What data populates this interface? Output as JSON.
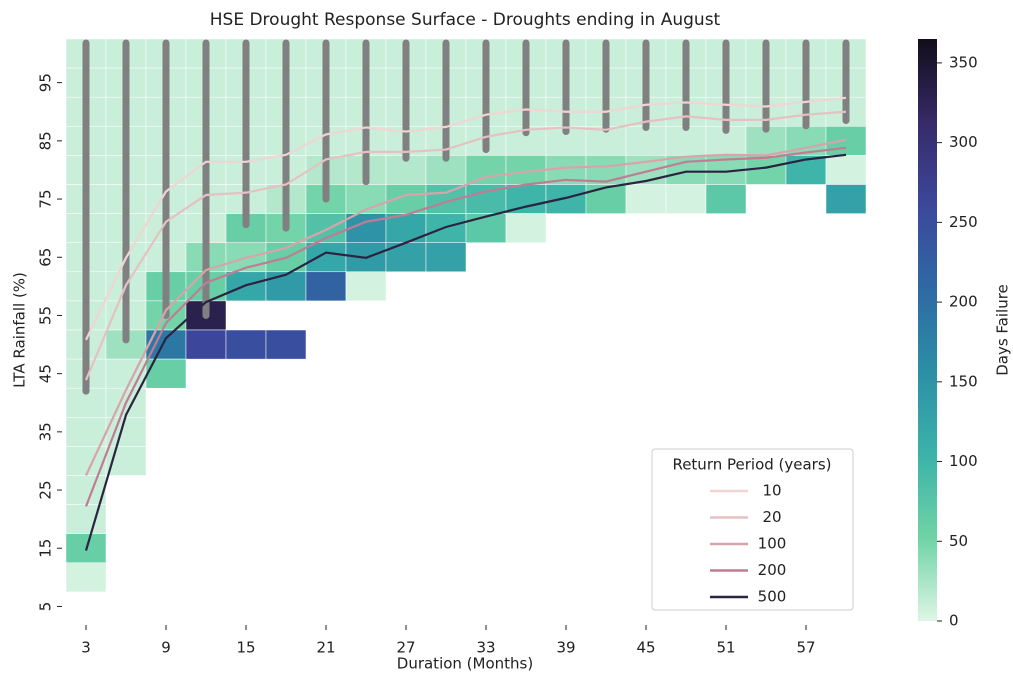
{
  "chart_data": {
    "type": "heatmap",
    "title": "HSE Drought Response Surface - Droughts ending in August",
    "x_label": "Duration (Months)",
    "y_label": "LTA Rainfall (%)",
    "colorbar_label": "Days Failure",
    "legend_title": "Return Period (years)",
    "columns": [
      3,
      6,
      9,
      12,
      15,
      18,
      21,
      24,
      27,
      30,
      33,
      36,
      39,
      42,
      45,
      48,
      51,
      54,
      57,
      60
    ],
    "rows": [
      100,
      95,
      90,
      85,
      80,
      75,
      70,
      65,
      60,
      55,
      50,
      45,
      40,
      35,
      30,
      25,
      20,
      15,
      10,
      5
    ],
    "z": [
      [
        10,
        10,
        10,
        10,
        10,
        10,
        10,
        10,
        10,
        10,
        10,
        10,
        10,
        10,
        10,
        10,
        10,
        10,
        10,
        10
      ],
      [
        10,
        10,
        10,
        10,
        10,
        10,
        10,
        10,
        10,
        10,
        10,
        10,
        10,
        10,
        10,
        10,
        10,
        10,
        10,
        10
      ],
      [
        10,
        10,
        10,
        10,
        10,
        10,
        10,
        10,
        10,
        10,
        10,
        10,
        10,
        10,
        10,
        10,
        10,
        10,
        10,
        10
      ],
      [
        10,
        10,
        10,
        10,
        10,
        10,
        10,
        10,
        10,
        10,
        10,
        10,
        10,
        10,
        10,
        10,
        10,
        30,
        40,
        60
      ],
      [
        10,
        10,
        10,
        10,
        10,
        10,
        20,
        20,
        20,
        30,
        50,
        50,
        40,
        40,
        30,
        40,
        40,
        50,
        100,
        5
      ],
      [
        10,
        10,
        10,
        10,
        10,
        20,
        50,
        40,
        60,
        80,
        90,
        100,
        100,
        60,
        5,
        5,
        70,
        null,
        null,
        130
      ],
      [
        10,
        10,
        10,
        10,
        60,
        50,
        80,
        150,
        120,
        100,
        70,
        5,
        null,
        null,
        null,
        null,
        null,
        null,
        null,
        null
      ],
      [
        10,
        10,
        10,
        40,
        40,
        60,
        120,
        140,
        130,
        130,
        null,
        null,
        null,
        null,
        null,
        null,
        null,
        null,
        null,
        null
      ],
      [
        10,
        10,
        60,
        60,
        120,
        140,
        220,
        5,
        null,
        null,
        null,
        null,
        null,
        null,
        null,
        null,
        null,
        null,
        null,
        null
      ],
      [
        10,
        10,
        50,
        330,
        null,
        null,
        null,
        null,
        null,
        null,
        null,
        null,
        null,
        null,
        null,
        null,
        null,
        null,
        null,
        null
      ],
      [
        10,
        30,
        190,
        260,
        250,
        250,
        null,
        null,
        null,
        null,
        null,
        null,
        null,
        null,
        null,
        null,
        null,
        null,
        null,
        null
      ],
      [
        10,
        10,
        60,
        null,
        null,
        null,
        null,
        null,
        null,
        null,
        null,
        null,
        null,
        null,
        null,
        null,
        null,
        null,
        null,
        null
      ],
      [
        10,
        10,
        null,
        null,
        null,
        null,
        null,
        null,
        null,
        null,
        null,
        null,
        null,
        null,
        null,
        null,
        null,
        null,
        null,
        null
      ],
      [
        10,
        10,
        null,
        null,
        null,
        null,
        null,
        null,
        null,
        null,
        null,
        null,
        null,
        null,
        null,
        null,
        null,
        null,
        null,
        null
      ],
      [
        10,
        10,
        null,
        null,
        null,
        null,
        null,
        null,
        null,
        null,
        null,
        null,
        null,
        null,
        null,
        null,
        null,
        null,
        null,
        null
      ],
      [
        10,
        null,
        null,
        null,
        null,
        null,
        null,
        null,
        null,
        null,
        null,
        null,
        null,
        null,
        null,
        null,
        null,
        null,
        null,
        null
      ],
      [
        10,
        null,
        null,
        null,
        null,
        null,
        null,
        null,
        null,
        null,
        null,
        null,
        null,
        null,
        null,
        null,
        null,
        null,
        null,
        null
      ],
      [
        60,
        null,
        null,
        null,
        null,
        null,
        null,
        null,
        null,
        null,
        null,
        null,
        null,
        null,
        null,
        null,
        null,
        null,
        null,
        null
      ],
      [
        5,
        null,
        null,
        null,
        null,
        null,
        null,
        null,
        null,
        null,
        null,
        null,
        null,
        null,
        null,
        null,
        null,
        null,
        null,
        null
      ],
      [
        null,
        null,
        null,
        null,
        null,
        null,
        null,
        null,
        null,
        null,
        null,
        null,
        null,
        null,
        null,
        null,
        null,
        null,
        null,
        null
      ]
    ],
    "colorscale": [
      "#def5e5",
      "#6fd3a6",
      "#3bb2a9",
      "#2c8fa6",
      "#2e69a4",
      "#3c479c",
      "#372a68",
      "#120e1b"
    ],
    "zlim": [
      0,
      365
    ],
    "zticks": [
      0,
      50,
      100,
      150,
      200,
      250,
      300,
      350
    ],
    "xlim": [
      1.5,
      61.5
    ],
    "ylim": [
      2.5,
      102.5
    ],
    "xticks": [
      3,
      9,
      15,
      21,
      27,
      33,
      39,
      45,
      51,
      57
    ],
    "yticks": [
      5,
      15,
      25,
      35,
      45,
      55,
      65,
      75,
      85,
      95
    ],
    "dots": {
      "color": "#808080",
      "low": [
        42,
        50.8,
        55,
        55,
        70.6,
        70,
        75,
        78,
        82,
        82,
        83.5,
        86.4,
        86.6,
        87,
        87.3,
        87.3,
        86.8,
        87,
        87.6,
        88.5
      ]
    },
    "x": [
      3,
      6,
      9,
      12,
      15,
      18,
      21,
      24,
      27,
      30,
      33,
      36,
      39,
      42,
      45,
      48,
      51,
      54,
      57,
      60
    ],
    "series": [
      {
        "name": "10",
        "color": "#efd5d3",
        "values": [
          50.8,
          64.9,
          76.3,
          81.4,
          81.4,
          82.6,
          86.1,
          87.3,
          86.6,
          87.4,
          89.5,
          90.4,
          90,
          90,
          91.2,
          91.6,
          91.2,
          90.9,
          91.7,
          92.4
        ]
      },
      {
        "name": "20",
        "color": "#e6c1c3",
        "values": [
          43.9,
          60.2,
          71.1,
          75.7,
          76.1,
          77.5,
          81.8,
          83.1,
          83.1,
          83.5,
          85.7,
          86.9,
          87.3,
          86.9,
          88.3,
          89.2,
          88.6,
          88.6,
          89.5,
          90
        ]
      },
      {
        "name": "100",
        "color": "#d8a3ab",
        "values": [
          27.5,
          42.2,
          55.9,
          62.8,
          64.9,
          66.6,
          69.7,
          73.2,
          75.7,
          76.1,
          78.8,
          79.7,
          80.4,
          80.6,
          81.4,
          82.3,
          82.6,
          82.5,
          83.8,
          85.2
        ]
      },
      {
        "name": "200",
        "color": "#bf7d94",
        "values": [
          22.2,
          40,
          53.7,
          60.6,
          63.2,
          64.9,
          68.3,
          71.1,
          72.3,
          74.5,
          76.3,
          77.5,
          78.3,
          78,
          79.7,
          81.4,
          81.8,
          82.1,
          83,
          83.8
        ]
      },
      {
        "name": "500",
        "color": "#2a2440",
        "values": [
          14.6,
          37.9,
          51.1,
          57.3,
          60.2,
          62,
          65.8,
          64.9,
          67.5,
          70.2,
          72,
          73.7,
          75.2,
          77,
          78.1,
          79.7,
          79.7,
          80.4,
          81.8,
          82.6
        ]
      }
    ]
  }
}
